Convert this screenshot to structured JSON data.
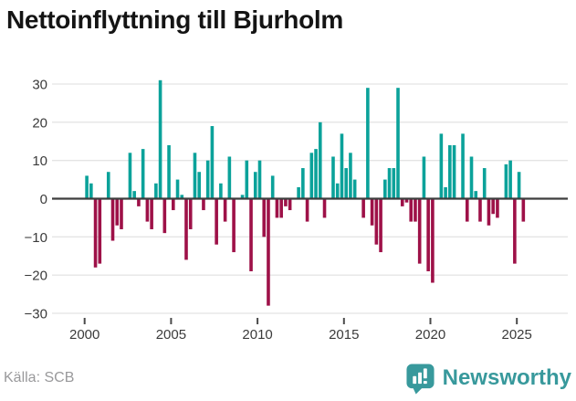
{
  "title": "Nettoinflyttning till Bjurholm",
  "footer": {
    "source": "Källa: SCB",
    "brand": "Newsworthy"
  },
  "colors": {
    "positive": "#0ba29a",
    "negative": "#9e1148",
    "brand_teal": "#38999c",
    "grid": "#e4e4e4",
    "zero_line": "#3d3d3d",
    "axis_text": "#3b3b3b",
    "title_text": "#141414",
    "source_text": "#99999b",
    "background": "#ffffff"
  },
  "chart_data": {
    "type": "bar",
    "title": "Nettoinflyttning till Bjurholm",
    "period": "quarter",
    "x_start": "2000Q1",
    "x_end": "2025Q2",
    "values": [
      6,
      4,
      -18,
      -17,
      0,
      7,
      -11,
      -7,
      -8,
      0,
      12,
      2,
      -2,
      13,
      -6,
      -8,
      4,
      31,
      -9,
      14,
      -3,
      5,
      1,
      -16,
      -8,
      12,
      7,
      -3,
      10,
      19,
      -12,
      4,
      -6,
      11,
      -14,
      0,
      1,
      10,
      -19,
      7,
      10,
      -10,
      -28,
      6,
      -5,
      -5,
      -2,
      -3,
      0,
      3,
      8,
      -6,
      12,
      13,
      20,
      -5,
      0,
      11,
      4,
      17,
      8,
      12,
      5,
      0,
      -5,
      29,
      -7,
      -12,
      -14,
      5,
      8,
      8,
      29,
      -2,
      -1,
      -6,
      -6,
      -17,
      11,
      -19,
      -22,
      0,
      17,
      3,
      14,
      14,
      0,
      17,
      -6,
      11,
      2,
      -6,
      8,
      -7,
      -4,
      -5,
      0,
      9,
      10,
      -17,
      7,
      -6
    ],
    "x_tick_labels": [
      "2000",
      "2005",
      "2010",
      "2015",
      "2020",
      "2025"
    ],
    "y_tick_values": [
      30,
      20,
      10,
      0,
      -10,
      -20,
      -30
    ],
    "y_tick_labels": [
      "30",
      "20",
      "10",
      "0",
      "−10",
      "−20",
      "−30"
    ],
    "ylim": [
      -30,
      31
    ],
    "grid": true,
    "legend": "none",
    "positive_color": "#0ba29a",
    "negative_color": "#9e1148"
  }
}
